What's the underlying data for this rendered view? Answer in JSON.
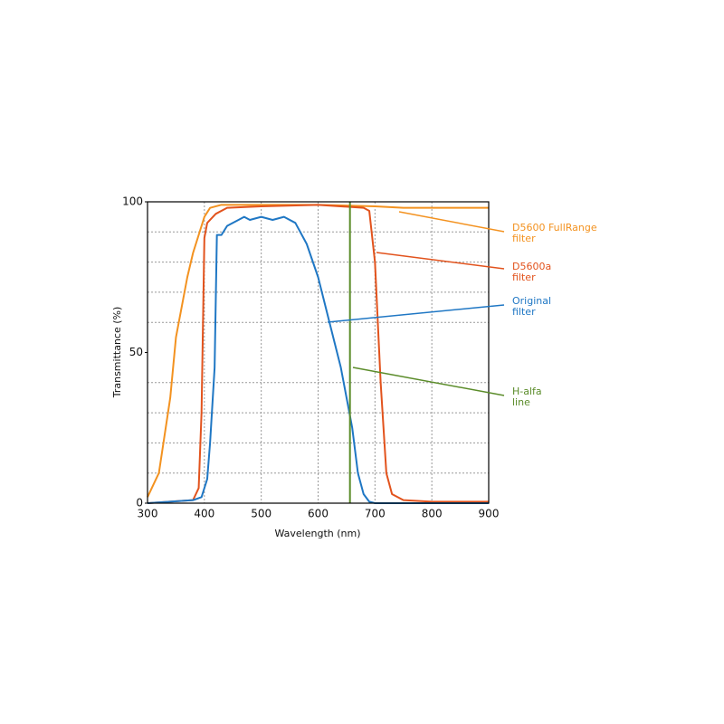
{
  "chart_data": {
    "type": "line",
    "x_label": "Wavelength (nm)",
    "y_label": "Transmittance (%)",
    "xlim": [
      300,
      900
    ],
    "ylim": [
      0,
      100
    ],
    "xticks": [
      300,
      400,
      500,
      600,
      700,
      800,
      900
    ],
    "yticks": [
      0,
      50,
      100
    ],
    "y_minor_ticks": [
      10,
      20,
      30,
      40,
      60,
      70,
      80,
      90
    ],
    "grid": true,
    "series": [
      {
        "name": "D5600 FullRange filter",
        "color": "#f39220",
        "x": [
          300,
          320,
          340,
          350,
          360,
          370,
          380,
          390,
          400,
          410,
          430,
          500,
          600,
          700,
          750,
          900
        ],
        "values": [
          2,
          10,
          35,
          55,
          65,
          75,
          83,
          89,
          95,
          98,
          99,
          99,
          99,
          98.5,
          98,
          98
        ]
      },
      {
        "name": "D5600a filter",
        "color": "#e2531d",
        "x": [
          300,
          380,
          390,
          395,
          400,
          405,
          420,
          440,
          500,
          600,
          680,
          690,
          700,
          710,
          720,
          730,
          750,
          800,
          900
        ],
        "values": [
          0,
          1,
          5,
          30,
          88,
          93,
          96,
          98,
          98.5,
          99,
          98,
          97,
          80,
          40,
          10,
          3,
          1,
          0.5,
          0.5
        ]
      },
      {
        "name": "Original filter",
        "color": "#1f77c4",
        "x": [
          300,
          380,
          395,
          405,
          410,
          418,
          422,
          430,
          440,
          460,
          470,
          480,
          500,
          520,
          540,
          560,
          580,
          600,
          620,
          640,
          655,
          660,
          670,
          680,
          690,
          700,
          900
        ],
        "values": [
          0,
          1,
          2,
          8,
          20,
          45,
          89,
          89,
          92,
          94,
          95,
          94,
          95,
          94,
          95,
          93,
          86,
          75,
          60,
          45,
          30,
          25,
          10,
          3,
          0.5,
          0,
          0
        ]
      }
    ],
    "vline": {
      "name": "H-alfa line",
      "x": 656,
      "color": "#5b8c2a"
    },
    "annotations": [
      {
        "lines": [
          "D5600 FullRange",
          "filter"
        ],
        "color": "#f39220"
      },
      {
        "lines": [
          "D5600a",
          "filter"
        ],
        "color": "#e2531d"
      },
      {
        "lines": [
          "Original",
          "filter"
        ],
        "color": "#1f77c4"
      },
      {
        "lines": [
          "H-alfa",
          "line"
        ],
        "color": "#5b8c2a"
      }
    ]
  }
}
